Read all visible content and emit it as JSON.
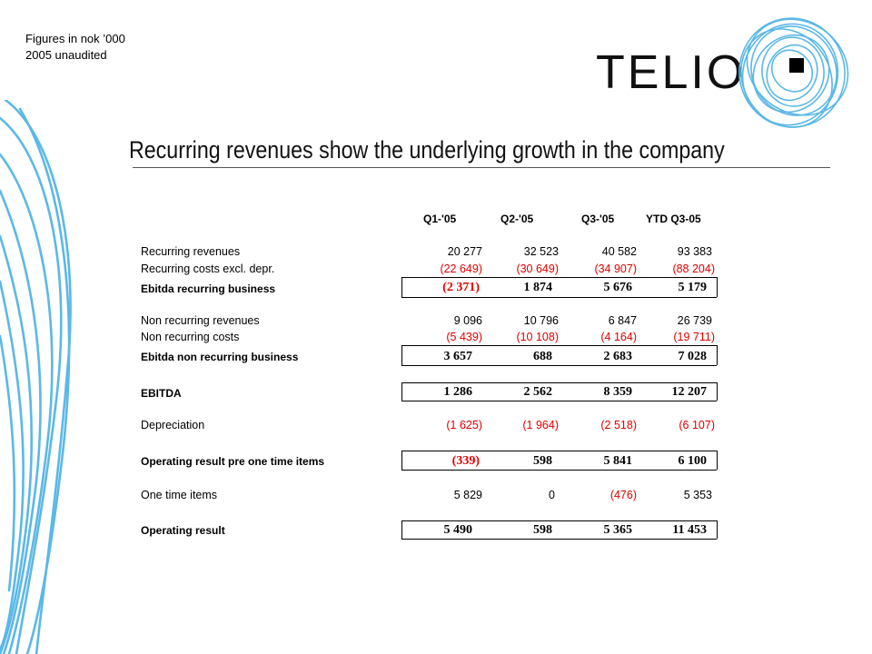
{
  "header": {
    "note_line1": "Figures in nok ’000",
    "note_line2": "2005 unaudited",
    "logo_text": "TELIO",
    "title": "Recurring revenues show the underlying growth in the company"
  },
  "table": {
    "columns": [
      "Q1-'05",
      "Q2-'05",
      "Q3-'05",
      "YTD  Q3-05"
    ],
    "rows": [
      {
        "label": "Recurring revenues",
        "values": [
          "20 277",
          "32 523",
          "40 582",
          "93 383"
        ],
        "neg": [
          false,
          false,
          false,
          false
        ]
      },
      {
        "label": "Recurring costs excl. depr.",
        "values": [
          "(22 649)",
          "(30 649)",
          "(34 907)",
          "(88 204)"
        ],
        "neg": [
          true,
          true,
          true,
          true
        ]
      },
      {
        "label": "Ebitda recurring business",
        "values": [
          "(2 371)",
          "1 874",
          "5 676",
          "5 179"
        ],
        "neg": [
          true,
          false,
          false,
          false
        ]
      },
      {
        "label": "Non recurring revenues",
        "values": [
          "9 096",
          "10 796",
          "6 847",
          "26 739"
        ],
        "neg": [
          false,
          false,
          false,
          false
        ]
      },
      {
        "label": "Non recurring costs",
        "values": [
          "(5 439)",
          "(10 108)",
          "(4 164)",
          "(19 711)"
        ],
        "neg": [
          true,
          true,
          true,
          true
        ]
      },
      {
        "label": "Ebitda non recurring business",
        "values": [
          "3 657",
          "688",
          "2 683",
          "7 028"
        ],
        "neg": [
          false,
          false,
          false,
          false
        ]
      },
      {
        "label": "EBITDA",
        "values": [
          "1 286",
          "2 562",
          "8 359",
          "12 207"
        ],
        "neg": [
          false,
          false,
          false,
          false
        ]
      },
      {
        "label": "Depreciation",
        "values": [
          "(1 625)",
          "(1 964)",
          "(2 518)",
          "(6 107)"
        ],
        "neg": [
          true,
          true,
          true,
          true
        ]
      },
      {
        "label": "Operating result pre one time items",
        "values": [
          "(339)",
          "598",
          "5 841",
          "6 100"
        ],
        "neg": [
          true,
          false,
          false,
          false
        ]
      },
      {
        "label": "One time items",
        "values": [
          "5 829",
          "0",
          "(476)",
          "5 353"
        ],
        "neg": [
          false,
          false,
          true,
          false
        ]
      },
      {
        "label": "Operating result",
        "values": [
          "5 490",
          "598",
          "5 365",
          "11 453"
        ],
        "neg": [
          false,
          false,
          false,
          false
        ]
      }
    ]
  },
  "colors": {
    "negative": "#e00000",
    "logo_accent": "#5bb8e6"
  }
}
